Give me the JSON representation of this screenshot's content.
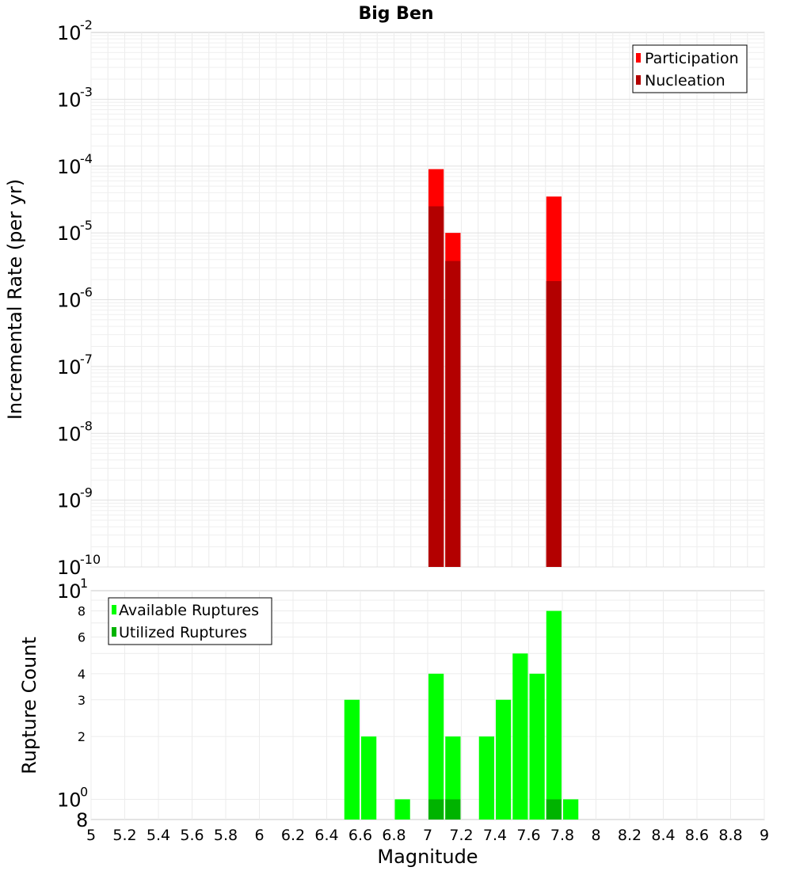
{
  "chart_data": [
    {
      "type": "bar",
      "title": "Big Ben",
      "xlabel": "",
      "ylabel": "Incremental Rate (per yr)",
      "scale": "log",
      "xlim": [
        5,
        9
      ],
      "ylim": [
        1e-10,
        0.01
      ],
      "bar_width": 0.1,
      "ytick_bases": [
        "10",
        "10",
        "10",
        "10",
        "10",
        "10",
        "10",
        "10",
        "10"
      ],
      "ytick_exponents": [
        "-10",
        "-9",
        "-8",
        "-7",
        "-6",
        "-5",
        "-4",
        "-3",
        "-2"
      ],
      "legend_position": "top-right",
      "series": [
        {
          "name": "Participation",
          "color": "#ff0000",
          "x": [
            7.05,
            7.15,
            7.75
          ],
          "values": [
            9e-05,
            1e-05,
            3.5e-05
          ]
        },
        {
          "name": "Nucleation",
          "color": "#b30000",
          "x": [
            7.05,
            7.15,
            7.75
          ],
          "values": [
            2.5e-05,
            3.8e-06,
            1.9e-06
          ]
        }
      ]
    },
    {
      "type": "bar",
      "title": "",
      "xlabel": "Magnitude",
      "ylabel": "Rupture Count",
      "scale": "log",
      "xlim": [
        5,
        9
      ],
      "ylim": [
        0.8,
        10
      ],
      "bar_width": 0.1,
      "xticks": [
        "5",
        "5.2",
        "5.4",
        "5.6",
        "5.8",
        "6",
        "6.2",
        "6.4",
        "6.6",
        "6.8",
        "7",
        "7.2",
        "7.4",
        "7.6",
        "7.8",
        "8",
        "8.2",
        "8.4",
        "8.6",
        "8.8",
        "9"
      ],
      "ytick_small": [
        "2",
        "3",
        "4",
        "6",
        "8"
      ],
      "ytick_small_values": [
        2,
        3,
        4,
        6,
        8
      ],
      "ytick_bases": [
        "10",
        "10"
      ],
      "ytick_exponents": [
        "0",
        "1"
      ],
      "ytick_bottom": "8",
      "legend_position": "top-left",
      "series": [
        {
          "name": "Available Ruptures",
          "color": "#00ff00",
          "x": [
            6.55,
            6.65,
            6.85,
            7.05,
            7.15,
            7.35,
            7.45,
            7.55,
            7.65,
            7.75,
            7.85
          ],
          "values": [
            3,
            2,
            1,
            4,
            2,
            2,
            3,
            5,
            4,
            8,
            1
          ]
        },
        {
          "name": "Utilized Ruptures",
          "color": "#00b300",
          "x": [
            7.05,
            7.15,
            7.75
          ],
          "values": [
            1,
            1,
            1
          ]
        }
      ]
    }
  ]
}
